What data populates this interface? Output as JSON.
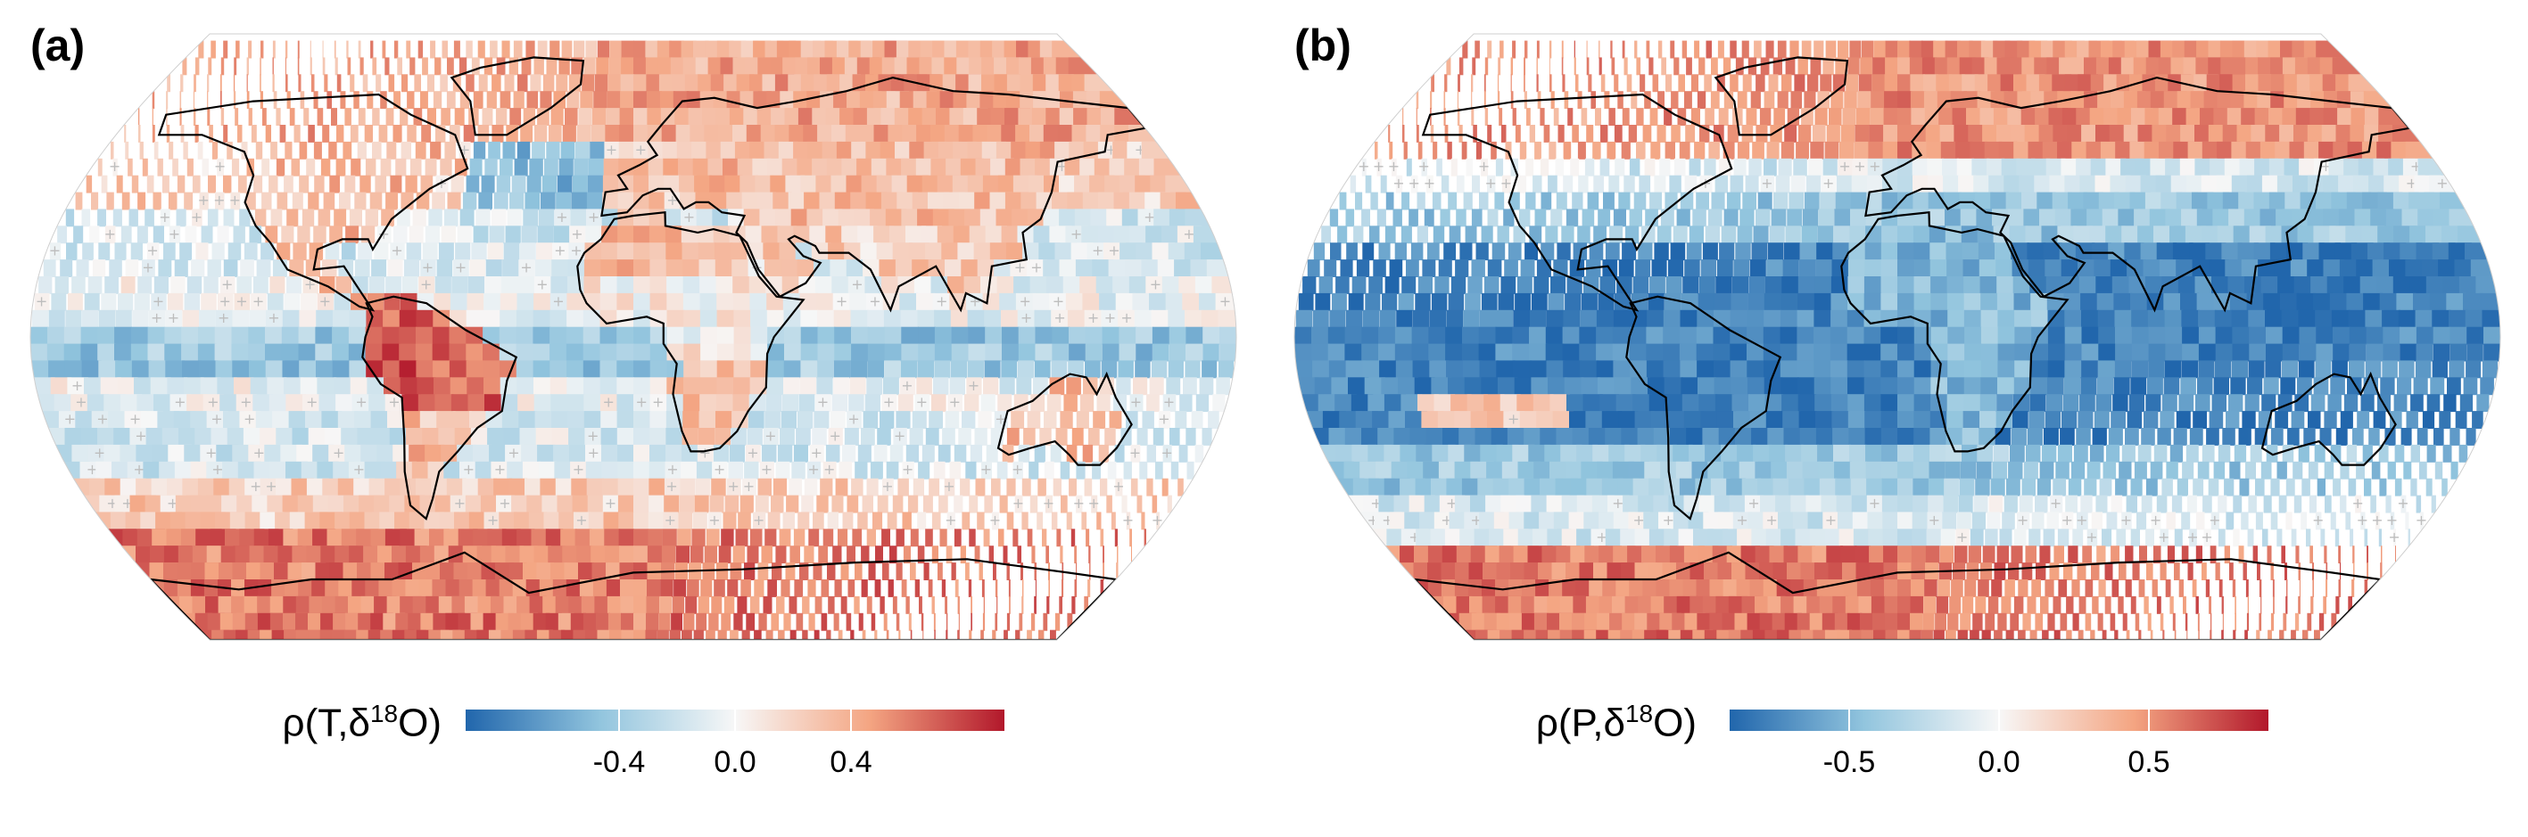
{
  "panels": [
    {
      "label": "(a)",
      "colorbar": {
        "title_prefix": "ρ(T,δ",
        "title_sup": "18",
        "title_suffix": "O)",
        "min": -0.7,
        "max": 0.7,
        "ticks": [
          {
            "label": "-0.4",
            "value": -0.4
          },
          {
            "label": "0.0",
            "value": 0.0
          },
          {
            "label": "0.4",
            "value": 0.4
          }
        ]
      },
      "pattern": "temperature"
    },
    {
      "label": "(b)",
      "colorbar": {
        "title_prefix": "ρ(P,δ",
        "title_sup": "18",
        "title_suffix": "O)",
        "min": -0.9,
        "max": 0.9,
        "ticks": [
          {
            "label": "-0.5",
            "value": -0.5
          },
          {
            "label": "0.0",
            "value": 0.0
          },
          {
            "label": "0.5",
            "value": 0.5
          }
        ]
      },
      "pattern": "precipitation"
    }
  ],
  "colors": {
    "negative": "#2166ac",
    "neutral": "#f7f7f7",
    "positive": "#b2182b",
    "stipple": "#bdbdbd",
    "coastline": "#000000"
  }
}
